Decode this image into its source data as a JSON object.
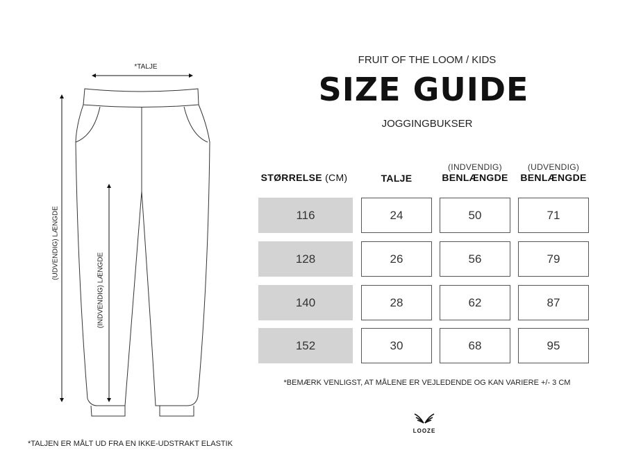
{
  "header": {
    "brand": "FRUIT OF THE LOOM / KIDS",
    "title": "SIZE GUIDE",
    "subtitle": "JOGGINGBUKSER"
  },
  "diagram": {
    "waist_label": "*TALJE",
    "outer_length_label": "(UDVENDIG) LÆNGDE",
    "inner_length_label": "(INDVENDIG) LÆNGDE"
  },
  "table": {
    "columns": [
      {
        "pre": "",
        "label": "STØRRELSE",
        "suffix": "(CM)"
      },
      {
        "pre": "",
        "label": "TALJE",
        "suffix": ""
      },
      {
        "pre": "(INDVENDIG)",
        "label": "BENLÆNGDE",
        "suffix": ""
      },
      {
        "pre": "(UDVENDIG)",
        "label": "BENLÆNGDE",
        "suffix": ""
      }
    ],
    "rows": [
      [
        "116",
        "24",
        "50",
        "71"
      ],
      [
        "128",
        "26",
        "56",
        "79"
      ],
      [
        "140",
        "28",
        "62",
        "87"
      ],
      [
        "152",
        "30",
        "68",
        "95"
      ]
    ],
    "size_cell_color": "#d3d3d3"
  },
  "notes": {
    "disclaimer": "*BEMÆRK VENLIGST, AT MÅLENE ER VEJLEDENDE OG KAN VARIERE +/- 3 CM",
    "waist_note": "*TALJEN ER MÅLT UD FRA EN IKKE-UDSTRAKT ELASTIK"
  },
  "logo": {
    "text": "LOOZE",
    "icon": "wings-icon"
  }
}
